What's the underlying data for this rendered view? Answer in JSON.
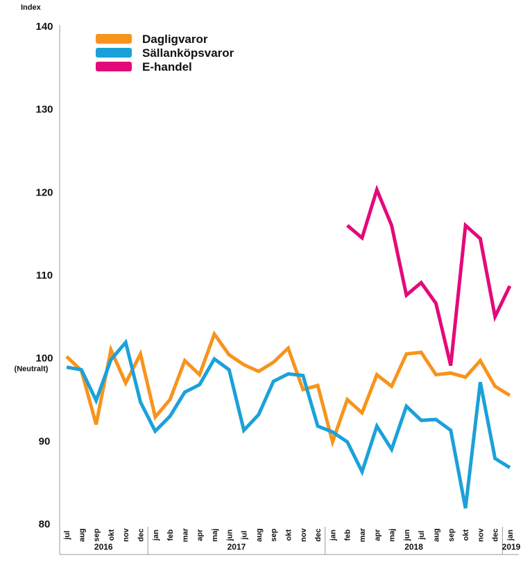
{
  "chart_data": {
    "type": "line",
    "y_label": "Index",
    "neutral_label": "(Neutralt)",
    "reference_line": 100,
    "categories": [
      "jul",
      "aug",
      "sep",
      "okt",
      "nov",
      "dec",
      "jan",
      "feb",
      "mar",
      "apr",
      "maj",
      "jun",
      "jul",
      "aug",
      "sep",
      "okt",
      "nov",
      "dec",
      "jan",
      "feb",
      "mar",
      "apr",
      "maj",
      "jun",
      "jul",
      "aug",
      "sep",
      "okt",
      "nov",
      "dec",
      "jan"
    ],
    "x_groups": [
      {
        "label": "2016",
        "size": 6
      },
      {
        "label": "2017",
        "size": 12
      },
      {
        "label": "2018",
        "size": 12
      },
      {
        "label": "2019",
        "size": 1
      }
    ],
    "series": [
      {
        "name": "Dagligvaror",
        "color": "#f7941d",
        "values": [
          100.2,
          98.5,
          92.0,
          101.0,
          97.0,
          100.5,
          92.9,
          95.0,
          99.7,
          98.0,
          102.9,
          100.4,
          99.2,
          98.4,
          99.5,
          101.2,
          96.2,
          96.7,
          89.9,
          95.0,
          93.4,
          98.0,
          96.6,
          100.5,
          100.7,
          98.0,
          98.2,
          97.7,
          99.7,
          96.6,
          95.5
        ]
      },
      {
        "name": "Sällanköpsvaror",
        "color": "#1ba1d9",
        "values": [
          98.9,
          98.6,
          94.9,
          99.8,
          101.9,
          94.7,
          91.2,
          93.0,
          95.9,
          96.8,
          99.9,
          98.6,
          91.3,
          93.2,
          97.2,
          98.1,
          97.9,
          91.8,
          91.1,
          89.9,
          86.3,
          91.8,
          89.0,
          94.2,
          92.5,
          92.6,
          91.3,
          81.9,
          97.1,
          87.9,
          86.8
        ]
      },
      {
        "name": "E-handel",
        "color": "#e4097b",
        "values": [
          null,
          null,
          null,
          null,
          null,
          null,
          null,
          null,
          null,
          null,
          null,
          null,
          null,
          null,
          null,
          null,
          null,
          null,
          null,
          116.0,
          114.5,
          120.3,
          116.0,
          107.6,
          109.1,
          106.6,
          99.1,
          116.0,
          114.4,
          105.0,
          108.7
        ]
      }
    ],
    "ylim": [
      80,
      140
    ],
    "yticks": [
      80,
      90,
      100,
      110,
      120,
      130,
      140
    ]
  }
}
